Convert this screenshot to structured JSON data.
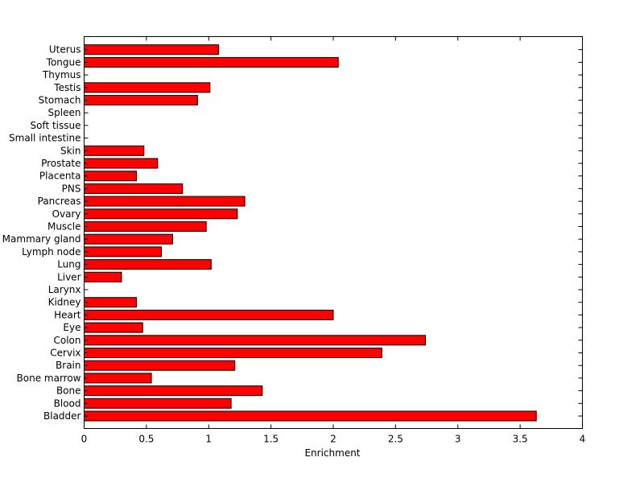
{
  "chart_data": {
    "type": "bar",
    "orientation": "horizontal",
    "title": "",
    "xlabel": "Enrichment",
    "ylabel": "",
    "xlim": [
      0,
      4
    ],
    "xticks": [
      0,
      0.5,
      1,
      1.5,
      2,
      2.5,
      3,
      3.5,
      4
    ],
    "xtick_labels": [
      "0",
      "0.5",
      "1",
      "1.5",
      "2",
      "2.5",
      "3",
      "3.5",
      "4"
    ],
    "grid": false,
    "legend": "none",
    "bar_color": "#ff0000",
    "edge_color": "#000000",
    "categories": [
      "Bladder",
      "Blood",
      "Bone",
      "Bone marrow",
      "Brain",
      "Cervix",
      "Colon",
      "Eye",
      "Heart",
      "Kidney",
      "Larynx",
      "Liver",
      "Lung",
      "Lymph node",
      "Mammary gland",
      "Muscle",
      "Ovary",
      "Pancreas",
      "PNS",
      "Placenta",
      "Prostate",
      "Skin",
      "Small intestine",
      "Soft tissue",
      "Spleen",
      "Stomach",
      "Testis",
      "Thymus",
      "Tongue",
      "Uterus"
    ],
    "values": [
      3.63,
      1.18,
      1.43,
      0.54,
      1.21,
      2.39,
      2.74,
      0.47,
      2.0,
      0.42,
      0,
      0.3,
      1.02,
      0.62,
      0.71,
      0.98,
      1.23,
      1.29,
      0.79,
      0.42,
      0.59,
      0.48,
      0,
      0,
      0,
      0.91,
      1.01,
      0,
      2.04,
      1.08
    ]
  }
}
